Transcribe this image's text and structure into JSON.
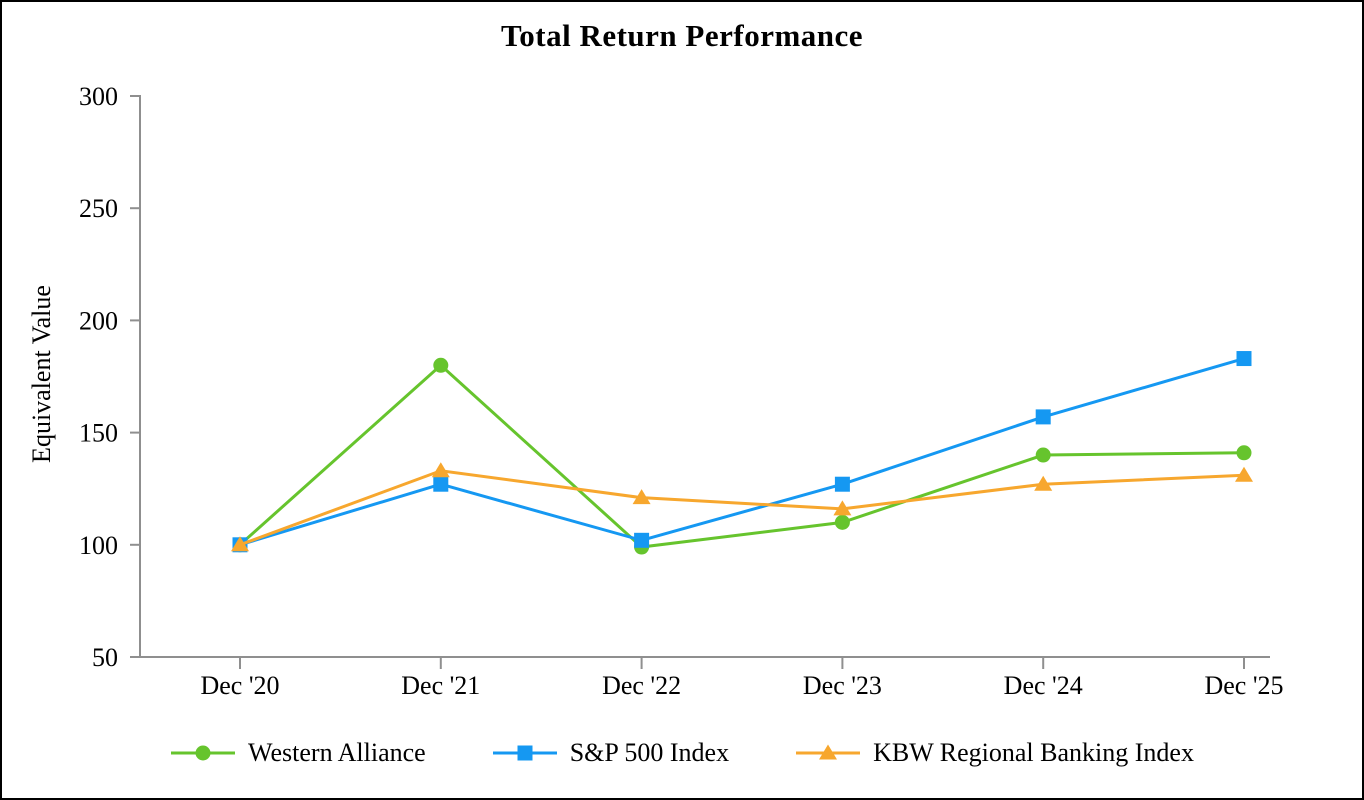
{
  "chart_data": {
    "type": "line",
    "title": "Total Return Performance",
    "ylabel": "Equivalent Value",
    "xlabel": "",
    "categories": [
      "Dec '20",
      "Dec '21",
      "Dec '22",
      "Dec '23",
      "Dec '24",
      "Dec '25"
    ],
    "series": [
      {
        "name": "Western Alliance",
        "marker": "circle",
        "color": "#66C42D",
        "values": [
          100,
          180,
          99,
          110,
          140,
          141
        ]
      },
      {
        "name": "S&P 500 Index",
        "marker": "square",
        "color": "#1598F2",
        "values": [
          100,
          127,
          102,
          127,
          157,
          183
        ]
      },
      {
        "name": "KBW Regional Banking Index",
        "marker": "triangle",
        "color": "#F7A72E",
        "values": [
          100,
          133,
          121,
          116,
          127,
          131
        ]
      }
    ],
    "yticks": [
      50,
      100,
      150,
      200,
      250,
      300
    ],
    "ylim": [
      50,
      300
    ],
    "grid": false,
    "legend_position": "bottom",
    "axis_color": "#8F8F8F",
    "text_color": "#000000",
    "background_color": "#FFFFFF",
    "border_color": "#000000"
  }
}
